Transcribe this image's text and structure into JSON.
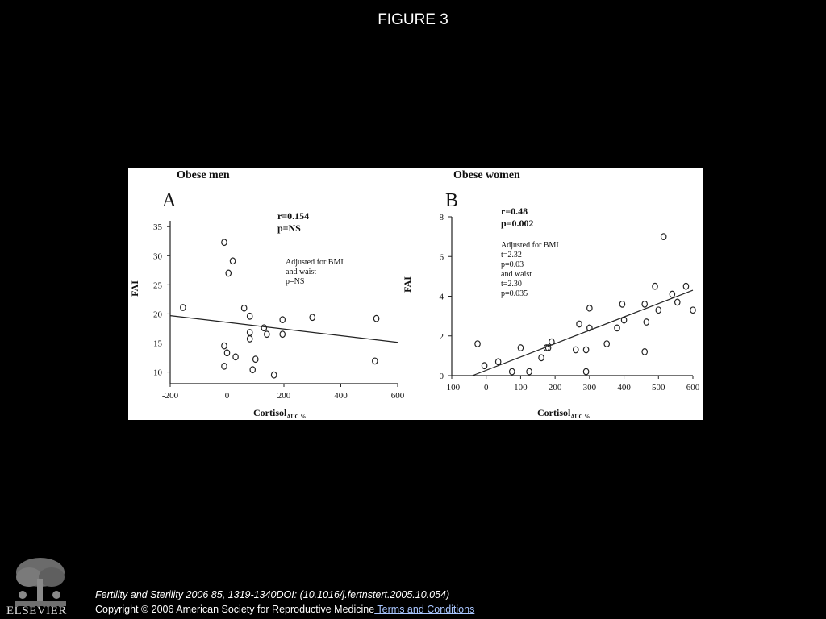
{
  "page": {
    "title": "FIGURE 3"
  },
  "footer": {
    "citation": "Fertility and Sterility 2006 85, 1319-1340DOI: (10.1016/j.fertnstert.2005.10.054)",
    "copyright": "Copyright © 2006 American Society for Reproductive Medicine",
    "terms_link": " Terms and Conditions",
    "logo_word": "ELSEVIER"
  },
  "chart_data": [
    {
      "type": "scatter",
      "panel_letter": "A",
      "title": "Obese men",
      "xlabel": "Cortisol",
      "xlabel_sub": "AUC %",
      "ylabel": "FAI",
      "xlim": [
        -200,
        600
      ],
      "ylim": [
        8,
        36
      ],
      "xticks": [
        -200,
        0,
        200,
        400,
        600
      ],
      "yticks": [
        10,
        15,
        20,
        25,
        30,
        35
      ],
      "stats": [
        "r=0.154",
        "p=NS"
      ],
      "adjusted_note": [
        "Adjusted for BMI",
        "and waist",
        "p=NS"
      ],
      "trendline": {
        "x": [
          -200,
          600
        ],
        "y": [
          19.7,
          15.1
        ]
      },
      "points": [
        [
          -155,
          21.1
        ],
        [
          -10,
          32.3
        ],
        [
          5,
          27
        ],
        [
          20,
          29.1
        ],
        [
          60,
          21
        ],
        [
          -10,
          14.5
        ],
        [
          0,
          13.3
        ],
        [
          -10,
          11
        ],
        [
          30,
          12.6
        ],
        [
          80,
          19.6
        ],
        [
          80,
          16.8
        ],
        [
          80,
          15.7
        ],
        [
          90,
          10.4
        ],
        [
          100,
          12.2
        ],
        [
          130,
          17.6
        ],
        [
          140,
          16.5
        ],
        [
          165,
          9.5
        ],
        [
          195,
          19
        ],
        [
          195,
          16.5
        ],
        [
          300,
          19.4
        ],
        [
          525,
          19.2
        ],
        [
          520,
          11.9
        ]
      ]
    },
    {
      "type": "scatter",
      "panel_letter": "B",
      "title": "Obese women",
      "xlabel": "Cortisol",
      "xlabel_sub": "AUC %",
      "ylabel": "FAI",
      "xlim": [
        -100,
        600
      ],
      "ylim": [
        0,
        8
      ],
      "xticks": [
        -100,
        0,
        100,
        200,
        300,
        400,
        500,
        600
      ],
      "yticks": [
        0,
        2,
        4,
        6,
        8
      ],
      "stats": [
        "r=0.48",
        "p=0.002"
      ],
      "adjusted_note": [
        "Adjusted for BMI",
        "t=2.32",
        "p=0.03",
        "and waist",
        "t=2.30",
        "p=0.035"
      ],
      "trendline": {
        "x": [
          -40,
          600
        ],
        "y": [
          0,
          4.3
        ]
      },
      "points": [
        [
          -25,
          1.6
        ],
        [
          -5,
          0.5
        ],
        [
          35,
          0.7
        ],
        [
          75,
          0.2
        ],
        [
          100,
          1.4
        ],
        [
          125,
          0.2
        ],
        [
          160,
          0.9
        ],
        [
          175,
          1.4
        ],
        [
          180,
          1.4
        ],
        [
          190,
          1.7
        ],
        [
          260,
          1.3
        ],
        [
          270,
          2.6
        ],
        [
          290,
          1.3
        ],
        [
          290,
          0.2
        ],
        [
          300,
          3.4
        ],
        [
          300,
          2.4
        ],
        [
          350,
          1.6
        ],
        [
          380,
          2.4
        ],
        [
          395,
          3.6
        ],
        [
          400,
          2.8
        ],
        [
          460,
          1.2
        ],
        [
          460,
          3.6
        ],
        [
          465,
          2.7
        ],
        [
          490,
          4.5
        ],
        [
          500,
          3.3
        ],
        [
          515,
          7.0
        ],
        [
          540,
          4.1
        ],
        [
          555,
          3.7
        ],
        [
          580,
          4.5
        ],
        [
          600,
          3.3
        ]
      ]
    }
  ]
}
